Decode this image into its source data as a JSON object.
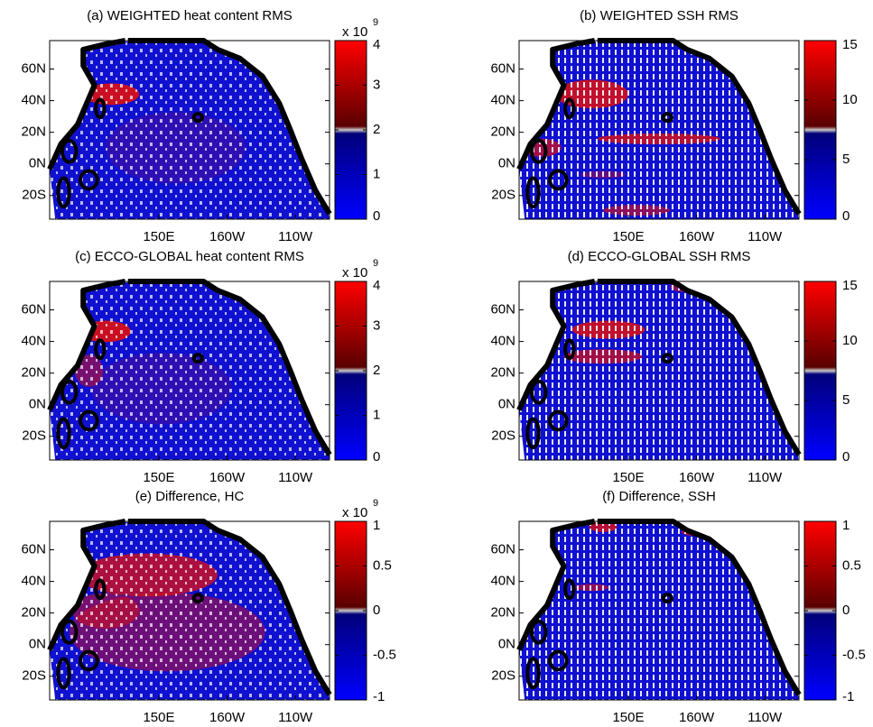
{
  "chart_data": [
    {
      "type": "map",
      "title": "(a) WEIGHTED heat content RMS",
      "xlim": [
        70,
        275
      ],
      "ylim": [
        -35,
        78
      ],
      "xticks": [
        {
          "value": 150,
          "label": "150E"
        },
        {
          "value": 200,
          "label": "160W"
        },
        {
          "value": 250,
          "label": "110W"
        }
      ],
      "yticks": [
        {
          "value": 60,
          "label": "60N"
        },
        {
          "value": 40,
          "label": "40N"
        },
        {
          "value": 20,
          "label": "20N"
        },
        {
          "value": 0,
          "label": "0N"
        },
        {
          "value": -20,
          "label": "20S"
        }
      ],
      "colorbar": {
        "clim": [
          0,
          4
        ],
        "ticks": [
          0,
          1,
          2,
          3,
          4
        ],
        "scale_base": "x 10",
        "scale_exponent": "9",
        "colormap": [
          "#0000ff",
          "#00007a",
          "#c8c8c8",
          "#5a0000",
          "#ff0000"
        ]
      }
    },
    {
      "type": "map",
      "title": "(b) WEIGHTED SSH RMS",
      "xlim": [
        70,
        275
      ],
      "ylim": [
        -35,
        78
      ],
      "xticks": [
        {
          "value": 150,
          "label": "150E"
        },
        {
          "value": 200,
          "label": "160W"
        },
        {
          "value": 250,
          "label": "110W"
        }
      ],
      "yticks": [
        {
          "value": 60,
          "label": "60N"
        },
        {
          "value": 40,
          "label": "40N"
        },
        {
          "value": 20,
          "label": "20N"
        },
        {
          "value": 0,
          "label": "0N"
        },
        {
          "value": -20,
          "label": "20S"
        }
      ],
      "colorbar": {
        "clim": [
          0,
          15
        ],
        "ticks": [
          0,
          5,
          10,
          15
        ],
        "colormap": [
          "#0000ff",
          "#00007a",
          "#c8c8c8",
          "#5a0000",
          "#ff0000"
        ]
      }
    },
    {
      "type": "map",
      "title": "(c) ECCO-GLOBAL heat content RMS",
      "xlim": [
        70,
        275
      ],
      "ylim": [
        -35,
        78
      ],
      "xticks": [
        {
          "value": 150,
          "label": "150E"
        },
        {
          "value": 200,
          "label": "160W"
        },
        {
          "value": 250,
          "label": "110W"
        }
      ],
      "yticks": [
        {
          "value": 60,
          "label": "60N"
        },
        {
          "value": 40,
          "label": "40N"
        },
        {
          "value": 20,
          "label": "20N"
        },
        {
          "value": 0,
          "label": "0N"
        },
        {
          "value": -20,
          "label": "20S"
        }
      ],
      "colorbar": {
        "clim": [
          0,
          4
        ],
        "ticks": [
          0,
          1,
          2,
          3,
          4
        ],
        "scale_base": "x 10",
        "scale_exponent": "9",
        "colormap": [
          "#0000ff",
          "#00007a",
          "#c8c8c8",
          "#5a0000",
          "#ff0000"
        ]
      }
    },
    {
      "type": "map",
      "title": "(d) ECCO-GLOBAL SSH RMS",
      "xlim": [
        70,
        275
      ],
      "ylim": [
        -35,
        78
      ],
      "xticks": [
        {
          "value": 150,
          "label": "150E"
        },
        {
          "value": 200,
          "label": "160W"
        },
        {
          "value": 250,
          "label": "110W"
        }
      ],
      "yticks": [
        {
          "value": 60,
          "label": "60N"
        },
        {
          "value": 40,
          "label": "40N"
        },
        {
          "value": 20,
          "label": "20N"
        },
        {
          "value": 0,
          "label": "0N"
        },
        {
          "value": -20,
          "label": "20S"
        }
      ],
      "colorbar": {
        "clim": [
          0,
          15
        ],
        "ticks": [
          0,
          5,
          10,
          15
        ],
        "colormap": [
          "#0000ff",
          "#00007a",
          "#c8c8c8",
          "#5a0000",
          "#ff0000"
        ]
      }
    },
    {
      "type": "map",
      "title": "(e) Difference, HC",
      "xlim": [
        70,
        275
      ],
      "ylim": [
        -35,
        78
      ],
      "xticks": [
        {
          "value": 150,
          "label": "150E"
        },
        {
          "value": 200,
          "label": "160W"
        },
        {
          "value": 250,
          "label": "110W"
        }
      ],
      "yticks": [
        {
          "value": 60,
          "label": "60N"
        },
        {
          "value": 40,
          "label": "40N"
        },
        {
          "value": 20,
          "label": "20N"
        },
        {
          "value": 0,
          "label": "0N"
        },
        {
          "value": -20,
          "label": "20S"
        }
      ],
      "colorbar": {
        "clim": [
          -1,
          1
        ],
        "ticks": [
          -1,
          -0.5,
          0,
          0.5,
          1
        ],
        "scale_base": "x 10",
        "scale_exponent": "9",
        "colormap": [
          "#0000ff",
          "#00007a",
          "#c8c8c8",
          "#5a0000",
          "#ff0000"
        ]
      }
    },
    {
      "type": "map",
      "title": "(f) Difference, SSH",
      "xlim": [
        70,
        275
      ],
      "ylim": [
        -35,
        78
      ],
      "xticks": [
        {
          "value": 150,
          "label": "150E"
        },
        {
          "value": 200,
          "label": "160W"
        },
        {
          "value": 250,
          "label": "110W"
        }
      ],
      "yticks": [
        {
          "value": 60,
          "label": "60N"
        },
        {
          "value": 40,
          "label": "40N"
        },
        {
          "value": 20,
          "label": "20N"
        },
        {
          "value": 0,
          "label": "0N"
        },
        {
          "value": -20,
          "label": "20S"
        }
      ],
      "colorbar": {
        "clim": [
          -1,
          1
        ],
        "ticks": [
          -1,
          -0.5,
          0,
          0.5,
          1
        ],
        "colormap": [
          "#0000ff",
          "#00007a",
          "#c8c8c8",
          "#5a0000",
          "#ff0000"
        ]
      }
    }
  ]
}
